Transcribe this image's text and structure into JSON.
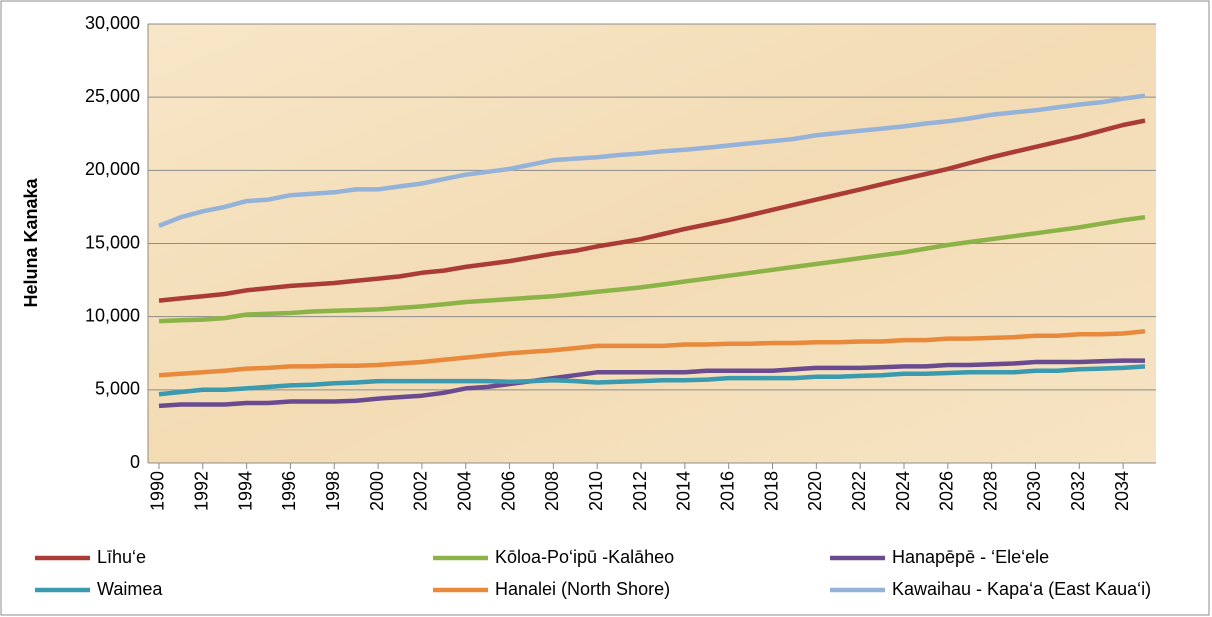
{
  "chart_data": {
    "type": "line",
    "y_label": "Heluna Kanaka",
    "x": [
      1990,
      1991,
      1992,
      1993,
      1994,
      1995,
      1996,
      1997,
      1998,
      1999,
      2000,
      2001,
      2002,
      2003,
      2004,
      2005,
      2006,
      2007,
      2008,
      2009,
      2010,
      2011,
      2012,
      2013,
      2014,
      2015,
      2016,
      2017,
      2018,
      2019,
      2020,
      2021,
      2022,
      2023,
      2024,
      2025,
      2026,
      2027,
      2028,
      2029,
      2030,
      2031,
      2032,
      2033,
      2034,
      2035
    ],
    "xlim": [
      1989.5,
      2035.5
    ],
    "xticks": [
      1990,
      1992,
      1994,
      1996,
      1998,
      2000,
      2002,
      2004,
      2006,
      2008,
      2010,
      2012,
      2014,
      2016,
      2018,
      2020,
      2022,
      2024,
      2026,
      2028,
      2030,
      2032,
      2034
    ],
    "ylim": [
      0,
      30000
    ],
    "yticks": [
      0,
      {
        "value": 5000,
        "label": "5,000"
      },
      {
        "value": 10000,
        "label": "10,000"
      },
      {
        "value": 15000,
        "label": "15,000"
      },
      {
        "value": 20000,
        "label": "20,000"
      },
      {
        "value": 25000,
        "label": "25,000"
      },
      {
        "value": 30000,
        "label": "30,000"
      }
    ],
    "grid": true,
    "legend": "bottom",
    "series": [
      {
        "name": "Līhu‘e",
        "color": "#aa3b35",
        "values": [
          11100,
          11250,
          11400,
          11550,
          11800,
          11950,
          12100,
          12200,
          12300,
          12450,
          12600,
          12750,
          13000,
          13150,
          13400,
          13600,
          13800,
          14050,
          14300,
          14500,
          14800,
          15050,
          15300,
          15650,
          16000,
          16300,
          16600,
          16950,
          17300,
          17650,
          18000,
          18350,
          18700,
          19050,
          19400,
          19750,
          20100,
          20500,
          20900,
          21250,
          21600,
          21950,
          22300,
          22700,
          23100,
          23400
        ]
      },
      {
        "name": "Kōloa-Po‘ipū -Kalāheo",
        "color": "#8cb347",
        "values": [
          9700,
          9750,
          9800,
          9900,
          10150,
          10200,
          10250,
          10350,
          10400,
          10450,
          10500,
          10600,
          10700,
          10850,
          11000,
          11100,
          11200,
          11300,
          11400,
          11550,
          11700,
          11850,
          12000,
          12200,
          12400,
          12600,
          12800,
          13000,
          13200,
          13400,
          13600,
          13800,
          14000,
          14200,
          14400,
          14650,
          14900,
          15100,
          15300,
          15500,
          15700,
          15900,
          16100,
          16350,
          16600,
          16800
        ]
      },
      {
        "name": "Hanapēpē - ‘Ele‘ele",
        "color": "#6b4b90",
        "values": [
          3900,
          4000,
          4000,
          4000,
          4100,
          4100,
          4200,
          4200,
          4200,
          4250,
          4400,
          4500,
          4600,
          4800,
          5100,
          5200,
          5400,
          5600,
          5800,
          6000,
          6200,
          6200,
          6200,
          6200,
          6200,
          6300,
          6300,
          6300,
          6300,
          6400,
          6500,
          6500,
          6500,
          6550,
          6600,
          6600,
          6700,
          6700,
          6750,
          6800,
          6900,
          6900,
          6900,
          6950,
          7000,
          7000
        ]
      },
      {
        "name": "Waimea",
        "color": "#3a9ab0",
        "values": [
          4700,
          4850,
          5000,
          5000,
          5100,
          5200,
          5300,
          5350,
          5450,
          5500,
          5600,
          5600,
          5600,
          5600,
          5600,
          5600,
          5550,
          5600,
          5650,
          5600,
          5500,
          5550,
          5600,
          5650,
          5650,
          5700,
          5800,
          5800,
          5800,
          5800,
          5900,
          5900,
          5950,
          6000,
          6100,
          6100,
          6150,
          6200,
          6200,
          6200,
          6300,
          6300,
          6400,
          6450,
          6500,
          6600
        ]
      },
      {
        "name": "Hanalei (North Shore)",
        "color": "#e8893b",
        "values": [
          6000,
          6100,
          6200,
          6300,
          6450,
          6500,
          6600,
          6600,
          6650,
          6650,
          6700,
          6800,
          6900,
          7050,
          7200,
          7350,
          7500,
          7600,
          7700,
          7850,
          8000,
          8000,
          8000,
          8000,
          8100,
          8100,
          8150,
          8150,
          8200,
          8200,
          8250,
          8250,
          8300,
          8300,
          8400,
          8400,
          8500,
          8500,
          8550,
          8600,
          8700,
          8700,
          8800,
          8800,
          8850,
          9000
        ]
      },
      {
        "name": "Kawaihau - Kapa‘a (East Kaua‘i)",
        "color": "#95b2d9",
        "values": [
          16200,
          16800,
          17200,
          17500,
          17900,
          18000,
          18300,
          18400,
          18500,
          18700,
          18700,
          18900,
          19100,
          19400,
          19700,
          19900,
          20100,
          20400,
          20700,
          20800,
          20900,
          21050,
          21150,
          21300,
          21400,
          21550,
          21700,
          21850,
          22000,
          22150,
          22400,
          22550,
          22700,
          22850,
          23000,
          23200,
          23350,
          23550,
          23800,
          23950,
          24100,
          24300,
          24500,
          24650,
          24900,
          25100
        ]
      }
    ]
  }
}
